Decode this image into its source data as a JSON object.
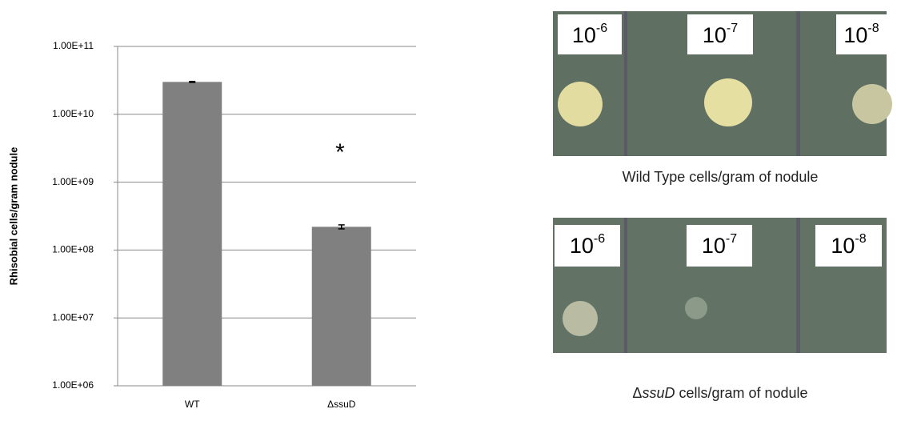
{
  "chart_data": {
    "type": "bar",
    "ylabel": "Rhisobial cells/gram nodule",
    "categories": [
      "WT",
      "ΔssuD"
    ],
    "values": [
      30000000000,
      220000000
    ],
    "errors": [
      500000000,
      15000000
    ],
    "color": "#808080",
    "log_scale": true,
    "grid": true,
    "ylim": [
      1000000,
      100000000000
    ],
    "yticks": [
      {
        "value": 1000000,
        "label": "1.00E+06"
      },
      {
        "value": 10000000,
        "label": "1.00E+07"
      },
      {
        "value": 100000000,
        "label": "1.00E+08"
      },
      {
        "value": 1000000000,
        "label": "1.00E+09"
      },
      {
        "value": 10000000000,
        "label": "1.00E+10"
      },
      {
        "value": 100000000000,
        "label": "1.00E+11"
      }
    ],
    "annotation": "*"
  },
  "plates": [
    {
      "labels": [
        {
          "base": "10",
          "exp": "-6"
        },
        {
          "base": "10",
          "exp": "-7"
        },
        {
          "base": "10",
          "exp": "-8"
        }
      ],
      "caption": [
        "Wild Type cells/gram of nodule"
      ]
    },
    {
      "labels": [
        {
          "base": "10",
          "exp": "-6"
        },
        {
          "base": "10",
          "exp": "-7"
        },
        {
          "base": "10",
          "exp": "-8"
        }
      ],
      "caption": [
        "Δ",
        "ssuD",
        " cells/gram of nodule"
      ]
    }
  ]
}
